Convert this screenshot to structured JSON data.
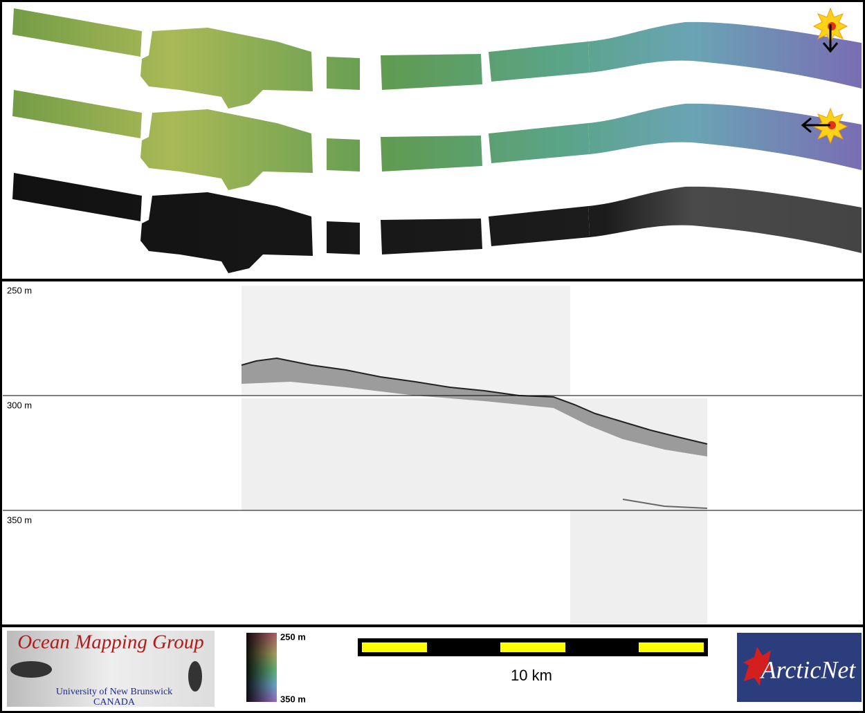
{
  "profile": {
    "depth_labels": [
      "250 m",
      "300 m",
      "350 m"
    ]
  },
  "footer": {
    "logo_left": {
      "title": "Ocean Mapping Group",
      "line1": "University of New Brunswick",
      "line2": "CANADA"
    },
    "colorbar": {
      "top_label": "250 m",
      "bottom_label": "350 m"
    },
    "scale_bar": {
      "label": "10 km"
    },
    "logo_right": {
      "text": "ArcticNet"
    }
  }
}
